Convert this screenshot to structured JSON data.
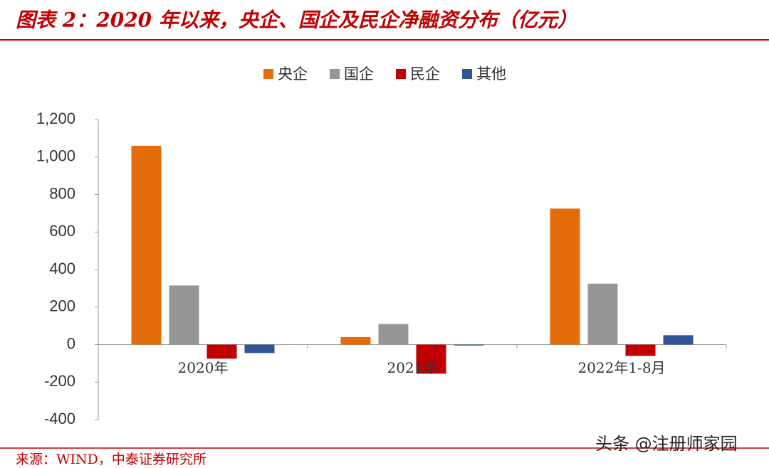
{
  "chart_data": {
    "type": "bar",
    "title": "图表 2：2020 年以来，央企、国企及民企净融资分布（亿元）",
    "categories": [
      "2020年",
      "2021年",
      "2022年1-8月"
    ],
    "series": [
      {
        "name": "央企",
        "color": "#e46c0a",
        "values": [
          1060,
          40,
          725
        ]
      },
      {
        "name": "国企",
        "color": "#969696",
        "values": [
          315,
          110,
          325
        ]
      },
      {
        "name": "民企",
        "color": "#c00000",
        "values": [
          -75,
          -155,
          -60
        ]
      },
      {
        "name": "其他",
        "color": "#2f5597",
        "values": [
          -45,
          -5,
          50
        ]
      }
    ],
    "ylim": [
      -400,
      1200
    ],
    "yticks": [
      -400,
      -200,
      0,
      200,
      400,
      600,
      800,
      {
        "value": 1000,
        "label": "1,000"
      },
      {
        "value": 1200,
        "label": "1,200"
      }
    ],
    "grid": false,
    "legend": "top",
    "source": "来源：WIND，中泰证券研究所",
    "watermark": "头条 @注册师家园"
  }
}
